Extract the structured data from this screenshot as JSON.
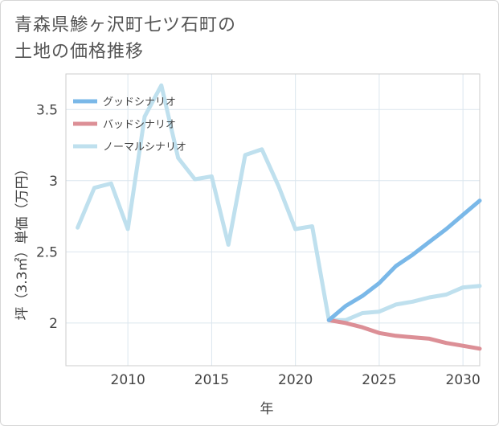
{
  "title_lines": [
    "青森県鯵ヶ沢町七ツ石町の",
    "土地の価格推移"
  ],
  "chart_data": {
    "type": "line",
    "title": "青森県鯵ヶ沢町七ツ石町の土地の価格推移",
    "xlabel": "年",
    "ylabel": "坪（3.3㎡）単価（万円）",
    "xlim": [
      2006.3,
      2031
    ],
    "ylim": [
      1.7,
      3.75
    ],
    "x_ticks": [
      2010,
      2015,
      2020,
      2025,
      2030
    ],
    "y_ticks": [
      2,
      2.5,
      3,
      3.5
    ],
    "grid": true,
    "legend_position": "top-left",
    "series": [
      {
        "name": "グッドシナリオ",
        "color": "#7ab8e8",
        "x": [
          2022,
          2023,
          2024,
          2025,
          2026,
          2027,
          2028,
          2029,
          2030,
          2031
        ],
        "y": [
          2.02,
          2.12,
          2.19,
          2.28,
          2.4,
          2.48,
          2.57,
          2.66,
          2.76,
          2.86
        ]
      },
      {
        "name": "バッドシナリオ",
        "color": "#dc8f96",
        "x": [
          2022,
          2023,
          2024,
          2025,
          2026,
          2027,
          2028,
          2029,
          2030,
          2031
        ],
        "y": [
          2.02,
          2.0,
          1.97,
          1.93,
          1.91,
          1.9,
          1.89,
          1.86,
          1.84,
          1.82
        ]
      },
      {
        "name": "ノーマルシナリオ",
        "color": "#bfe0ee",
        "x": [
          2007,
          2008,
          2009,
          2010,
          2011,
          2012,
          2013,
          2014,
          2015,
          2016,
          2017,
          2018,
          2019,
          2020,
          2021,
          2022,
          2023,
          2024,
          2025,
          2026,
          2027,
          2028,
          2029,
          2030,
          2031
        ],
        "y": [
          2.67,
          2.95,
          2.98,
          2.66,
          3.45,
          3.67,
          3.16,
          3.01,
          3.03,
          2.55,
          3.18,
          3.22,
          2.96,
          2.66,
          2.68,
          2.02,
          2.02,
          2.07,
          2.08,
          2.13,
          2.15,
          2.18,
          2.2,
          2.25,
          2.26
        ]
      }
    ]
  }
}
